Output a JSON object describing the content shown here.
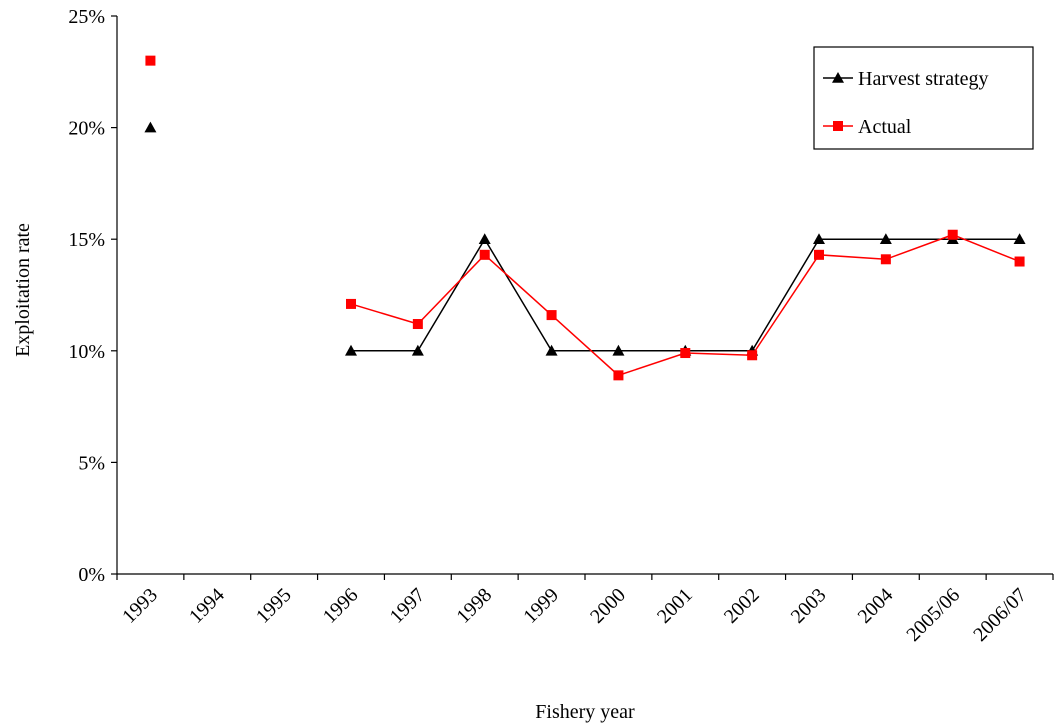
{
  "chart_data": {
    "type": "line",
    "title": "",
    "xlabel": "Fishery year",
    "ylabel": "Exploitation rate",
    "categories": [
      "1993",
      "1994",
      "1995",
      "1996",
      "1997",
      "1998",
      "1999",
      "2000",
      "2001",
      "2002",
      "2003",
      "2004",
      "2005/06",
      "2006/07"
    ],
    "ylim": [
      0,
      25
    ],
    "yticks": [
      "0%",
      "5%",
      "10%",
      "15%",
      "20%",
      "25%"
    ],
    "y_unit": "%",
    "grid": false,
    "legend_position": "top-right",
    "series": [
      {
        "name": "Harvest strategy",
        "color": "#000000",
        "marker": "triangle",
        "values": [
          20,
          null,
          null,
          10,
          10,
          15,
          10,
          10,
          10,
          10,
          15,
          15,
          15,
          15
        ]
      },
      {
        "name": "Actual",
        "color": "#ff0000",
        "marker": "square",
        "values": [
          23,
          null,
          null,
          12.1,
          11.2,
          14.3,
          11.6,
          8.9,
          9.9,
          9.8,
          14.3,
          14.1,
          15.2,
          14.0
        ]
      }
    ]
  }
}
